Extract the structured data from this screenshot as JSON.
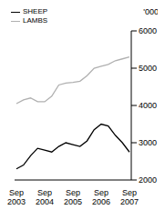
{
  "chart_data": {
    "type": "line",
    "y_label": "'000",
    "categories": [
      "Sep 2003",
      null,
      null,
      null,
      "Sep 2004",
      null,
      null,
      null,
      "Sep 2005",
      null,
      null,
      null,
      "Sep 2006",
      null,
      null,
      null,
      "Sep 2007"
    ],
    "series": [
      {
        "name": "SHEEP",
        "color": "#000000",
        "values": [
          2300,
          2400,
          2650,
          2850,
          2800,
          2750,
          2900,
          3000,
          2950,
          2900,
          3050,
          3350,
          3500,
          3450,
          3200,
          3000,
          2750
        ]
      },
      {
        "name": "LAMBS",
        "color": "#b0b0b0",
        "values": [
          4050,
          4150,
          4200,
          4100,
          4100,
          4250,
          4550,
          4600,
          4620,
          4650,
          4800,
          5000,
          5050,
          5100,
          5200,
          5250,
          5300
        ]
      }
    ],
    "ylim": [
      2000,
      6000
    ],
    "yticks": [
      2000,
      3000,
      4000,
      5000,
      6000
    ],
    "grid": false,
    "legend": "top left"
  }
}
